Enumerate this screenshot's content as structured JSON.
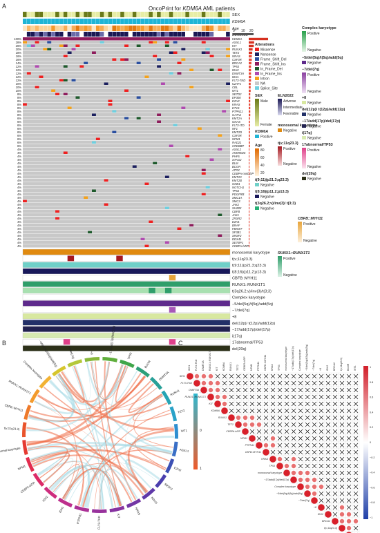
{
  "panels": {
    "a": "A",
    "b": "B",
    "c": "C"
  },
  "oncoprint": {
    "title_prefix": "OncoPrint for ",
    "title_gene": "KDM6A",
    "title_suffix": " AML patients",
    "top_tracks": [
      "SEX",
      "KDM6A",
      "Age",
      "ELN2022"
    ],
    "colorbar_ticks": [
      "0",
      "10",
      "20"
    ],
    "genes": [
      "KDM6A",
      "ASXL1",
      "KIT",
      "RUNX1",
      "TET2",
      "NRAS",
      "CSF3R",
      "BRCA2",
      "TP53",
      "IDH2",
      "DNMT3A",
      "IDH1",
      "FLT3-TKD",
      "U2AF1",
      "CBL",
      "WT1",
      "SETD2",
      "EP300",
      "EZH2",
      "KRAS",
      "ETV6",
      "PTPN11",
      "GATA2",
      "KMT2A",
      "GNAS",
      "FLT3-ITD",
      "NF1",
      "KMT2D",
      "CSF3R",
      "NPM1",
      "RAD21",
      "CREBBP",
      "ASXL2",
      "ANKRD26",
      "PHF6",
      "STAG2",
      "BLM",
      "BCOR",
      "ATRX",
      "CEBPA-nonbZIP",
      "KMT2C",
      "KMT2B",
      "GNB1",
      "NOTCH1",
      "TP63",
      "PDGFRB",
      "SMC1A",
      "SMC3",
      "JAK2",
      "SH2B3",
      "CBFB",
      "JAK1",
      "ZRSR2",
      "EZH1",
      "BRAF",
      "FBXW7",
      "SF3B1",
      "SRSF2",
      "DDX41",
      "SETBP1",
      "CEBPA-bZIP"
    ],
    "pct": [
      "100%",
      "28%",
      "26%",
      "20%",
      "18%",
      "16%",
      "16%",
      "14%",
      "12%",
      "12%",
      "12%",
      "12%",
      "12%",
      "10%",
      "10%",
      "10%",
      "8%",
      "8%",
      "8%",
      "8%",
      "8%",
      "8%",
      "8%",
      "6%",
      "6%",
      "6%",
      "6%",
      "6%",
      "6%",
      "6%",
      "6%",
      "6%",
      "4%",
      "4%",
      "4%",
      "4%",
      "4%",
      "4%",
      "4%",
      "4%",
      "4%",
      "4%",
      "4%",
      "4%",
      "4%",
      "4%",
      "4%",
      "4%",
      "4%",
      "4%",
      "4%",
      "4%",
      "4%",
      "4%",
      "4%",
      "4%",
      "4%",
      "4%",
      "4%",
      "4%",
      "4%"
    ],
    "bottom_tracks": [
      "monosomal karyotype",
      "t(v;11q23.3)",
      "t(9;11)(p21.3;q23.3)",
      "t(8;16)(p11.2;p13.3)",
      "CBFB::MYH11",
      "RUNX1::RUNX1T1",
      "t(3q26.2;v)/inv(3)/t(3;3)",
      "Complex karyotype",
      "−5/del(5q)/t(5q)/add(5q)",
      "−7/del(7q)",
      "+8",
      "del(12p)/ t(12p)/add(12p)",
      "−17/add(17p)/del(17p)",
      "i(17q)",
      "17abnormal/TP53",
      "del(20q)"
    ],
    "colors": {
      "missense": "#ef2020",
      "nonsense": "#1b1f5e",
      "frameshift_del": "#2a4fa0",
      "frameshift_ins": "#8e1c5c",
      "inframe_del": "#1e5a2c",
      "inframe_ins": "#b04ab0",
      "intron": "#f5a21a",
      "na": "#c9c9c9",
      "splice": "#6fd0e0",
      "bg": "#c8c8c8",
      "male": "#6a7a18",
      "female": "#e7eda5",
      "positive": "#1fb5d6",
      "eln": "#1a1854"
    },
    "legends": {
      "alterations_title": "Alterations",
      "alterations": [
        "Missense",
        "Nonsense",
        "Frame_Shift_Del",
        "Frame_Shift_Ins",
        "In_Frame_Del",
        "In_Frame_Ins",
        "Intron",
        "NA",
        "Splice_Site"
      ],
      "sex_title": "SEX",
      "sex": [
        "Male",
        "Female"
      ],
      "kdm6a_title": "KDM6A",
      "kdm6a": [
        "Positive"
      ],
      "age_title": "Age",
      "age_ticks": [
        "80",
        "60",
        "40",
        "20"
      ],
      "eln_title": "ELN2022",
      "eln": [
        "Adverse",
        "Intermediate",
        "Favorable"
      ],
      "mono_title": "monosomal karyotype",
      "mono": [
        "Negative"
      ],
      "tv11_title": "t(v;11q23.3)",
      "tv11": [
        "Positive",
        "Negative"
      ],
      "t911_title": "t(9;11)(p21.3;q23.3)",
      "t911": [
        "Negative"
      ],
      "t816_title": "t(8;16)(p11.2;p13.3)",
      "t816": [
        "Negative"
      ],
      "t3q26_title": "t(3q26.2;v)/inv(3)/ t(3;3)",
      "t3q26": [
        "Negative"
      ],
      "cbfb_title": "CBFB::MYH11",
      "cbfb": [
        "Positive",
        "Negative"
      ],
      "runx_title": "RUNX1::RUNX1T1",
      "runx": [
        "Positive",
        "Negative"
      ],
      "complex_title": "Complex karyotype",
      "complex": [
        "Positive",
        "Negative"
      ],
      "del5_title": "−5/del(5q)/t(5q)/add(5q)",
      "del5": [
        "Negative"
      ],
      "del7_title": "−7/del(7q)",
      "del7": [
        "Positive",
        "Negative"
      ],
      "plus8_title": "+8",
      "plus8": [
        "Negative"
      ],
      "del12_title": "del(12p)/ t(12p)/add(12p)",
      "del12": [
        "Negative"
      ],
      "del17_title": "−17/add(17p)/del(17p)",
      "del17": [
        "Negative"
      ],
      "i17q_title": "i(17q)",
      "i17q": [
        "Negative"
      ],
      "tp53_title": "17abnormal/TP53",
      "tp53": [
        "Positive",
        "Negative"
      ],
      "del20_title": "del(20q)",
      "del20": [
        "Negative"
      ]
    }
  },
  "chord": {
    "scale_ticks": [
      "1",
      "0",
      "−1"
    ],
    "sectors": [
      {
        "name": "Complex karyotype",
        "color": "#f2b233"
      },
      {
        "name": "−5/del(5q)/t(5q)/add(5q)",
        "color": "#d6c62e"
      },
      {
        "name": "−7/del(7q)",
        "color": "#b4c83a"
      },
      {
        "name": "+8",
        "color": "#88b83a"
      },
      {
        "name": "−17/add(17p)/del(17p)",
        "color": "#5fae3c"
      },
      {
        "name": "TP53",
        "color": "#3fa64a"
      },
      {
        "name": "BCOR",
        "color": "#2fa07a"
      },
      {
        "name": "DNMT3A",
        "color": "#28a098"
      },
      {
        "name": "RUNX1",
        "color": "#27a4b4"
      },
      {
        "name": "TET2",
        "color": "#2aa2c8"
      },
      {
        "name": "WT1",
        "color": "#2f8fd0"
      },
      {
        "name": "ASXL1",
        "color": "#3a6fc6"
      },
      {
        "name": "EZH2",
        "color": "#3c50b4"
      },
      {
        "name": "SRSF2",
        "color": "#4b3fae"
      },
      {
        "name": "KRAS",
        "color": "#5f38a8"
      },
      {
        "name": "NRAS",
        "color": "#7336a4"
      },
      {
        "name": "KIT",
        "color": "#8632a0"
      },
      {
        "name": "FLT3-TKD",
        "color": "#98329c"
      },
      {
        "name": "PTPN11",
        "color": "#ab3196"
      },
      {
        "name": "IDH1",
        "color": "#bd2f8c"
      },
      {
        "name": "IDH2",
        "color": "#ce2d7e"
      },
      {
        "name": "CEBPA-bZIP",
        "color": "#dc2b68"
      },
      {
        "name": "NPM1",
        "color": "#e32c4e"
      },
      {
        "name": "Monosomal karyotype",
        "color": "#e53a32"
      },
      {
        "name": "t(v;11q23.3)",
        "color": "#e9542c"
      },
      {
        "name": "CBFB::MYH11",
        "color": "#ee7a2a"
      },
      {
        "name": "RUNX1::RUNX1T1",
        "color": "#f39a2c"
      }
    ]
  },
  "corr": {
    "labels": [
      "IDH1",
      "FLT3-TKD",
      "DNMT3A",
      "RUNX1::RUNX1T1",
      "KIT",
      "KDM6A",
      "RUNX1",
      "TET2",
      "CEBPA-bZIP",
      "NPM1",
      "PTPN11",
      "CBFB::MYH11",
      "KRAS",
      "TP53",
      "monosomal karyotype",
      "−17/add(17p)/del(17p)",
      "Complex karyotype",
      "−5/del(5q)/t(5q)/add(5q)",
      "−7/del(7q)",
      "+8",
      "IDH2",
      "BRCA2",
      "t(v;11q23.3)",
      "BCOR",
      "WT1"
    ],
    "scale_ticks": [
      "1",
      "0.8",
      "0.6",
      "0.4",
      "0.2",
      "0",
      "−0.2",
      "−0.4",
      "−0.6",
      "−0.8",
      "−1"
    ]
  }
}
